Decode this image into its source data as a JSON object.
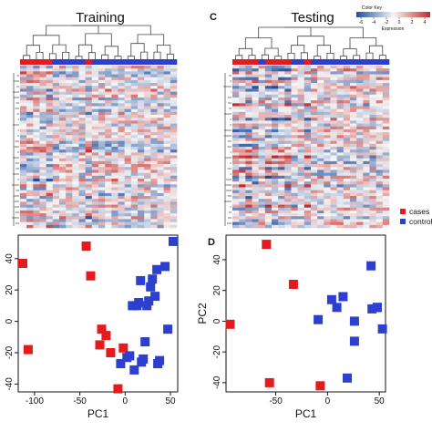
{
  "panel_letters": {
    "c": "C",
    "d": "D"
  },
  "color_key": {
    "title": "Color Key",
    "ticks": [
      "-6",
      "-4",
      "-2",
      "0",
      "2",
      "4"
    ],
    "xlabel": "Expression",
    "low_color": "#1f4e9e",
    "mid_color": "#f7f7f7",
    "high_color": "#c62828"
  },
  "legend": {
    "items": [
      {
        "label": "cases",
        "color": "#e41a1c"
      },
      {
        "label": "controls",
        "color": "#2c3fcf"
      }
    ]
  },
  "chart_data": [
    {
      "type": "heatmap",
      "title": "Training",
      "column_groups": [
        "case",
        "case",
        "case",
        "case",
        "case",
        "control",
        "control",
        "control",
        "control",
        "control",
        "case",
        "control",
        "control",
        "control",
        "control",
        "control",
        "control",
        "control",
        "control",
        "control",
        "control",
        "control",
        "control",
        "control"
      ],
      "note": "hierarchically clustered gene expression, blue = low, red = high"
    },
    {
      "type": "heatmap",
      "title": "Testing",
      "column_groups": [
        "case",
        "case",
        "case",
        "case",
        "control",
        "case",
        "case",
        "case",
        "case",
        "control",
        "control",
        "case",
        "control",
        "control",
        "control",
        "control",
        "control",
        "control",
        "control",
        "control",
        "control",
        "control",
        "control",
        "control"
      ],
      "note": "hierarchically clustered gene expression, blue = low, red = high"
    },
    {
      "type": "scatter",
      "xlabel": "PC1",
      "ylabel": "",
      "xlim": [
        -118,
        58
      ],
      "ylim": [
        -45,
        55
      ],
      "xticks": [
        -100,
        -50,
        0,
        50
      ],
      "yticks": [
        -40,
        -20,
        0,
        20,
        40
      ],
      "series": [
        {
          "name": "cases",
          "x": [
            -113,
            -107,
            -43,
            -38,
            -26,
            -21,
            -16,
            -28,
            -8,
            -2
          ],
          "y": [
            37,
            -18,
            48,
            29,
            -5,
            -9,
            -20,
            -15,
            -43,
            -17
          ]
        },
        {
          "name": "controls",
          "x": [
            -5,
            2,
            5,
            10,
            8,
            13,
            15,
            17,
            18,
            20,
            22,
            24,
            26,
            28,
            30,
            33,
            35,
            36,
            38,
            44,
            47,
            53
          ],
          "y": [
            -27,
            -23,
            -22,
            -31,
            10,
            10,
            12,
            26,
            -26,
            -24,
            -13,
            10,
            13,
            22,
            27,
            16,
            33,
            -27,
            -25,
            35,
            -5,
            51
          ]
        }
      ]
    },
    {
      "type": "scatter",
      "xlabel": "PC1",
      "ylabel": "PC2",
      "xlim": [
        -98,
        56
      ],
      "ylim": [
        -46,
        56
      ],
      "xticks": [
        -50,
        0,
        50
      ],
      "yticks": [
        -40,
        -20,
        0,
        20,
        40
      ],
      "series": [
        {
          "name": "cases",
          "x": [
            -94,
            -59,
            -56,
            -33,
            -7
          ],
          "y": [
            -2,
            50,
            -40,
            24,
            -42
          ]
        },
        {
          "name": "controls",
          "x": [
            -9,
            4,
            9,
            15,
            19,
            26,
            26,
            42,
            43,
            48,
            48,
            53
          ],
          "y": [
            1,
            14,
            9,
            16,
            -37,
            0,
            -13,
            36,
            8,
            9,
            9,
            -5
          ]
        }
      ]
    }
  ]
}
